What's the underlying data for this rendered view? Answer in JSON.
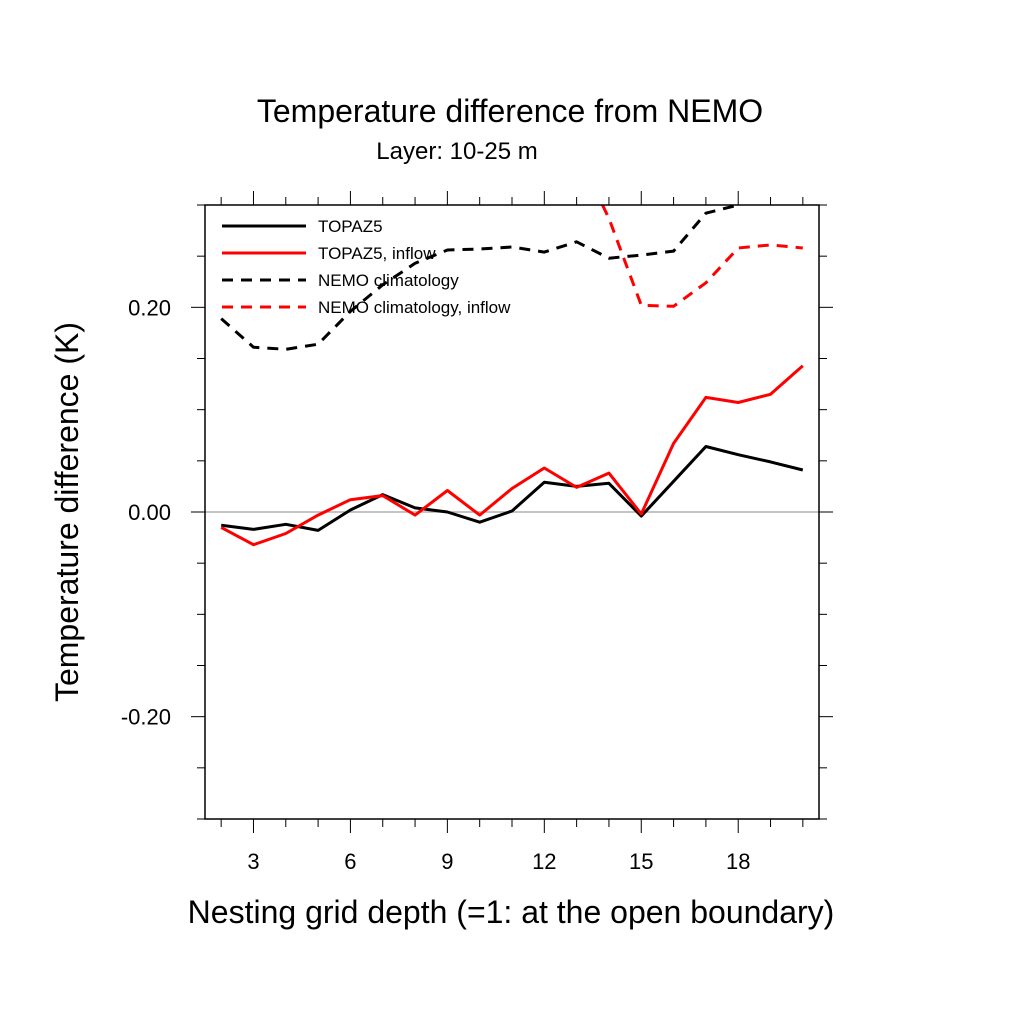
{
  "chart_data": {
    "type": "line",
    "title": "Temperature difference from NEMO",
    "subtitle": "Layer: 10-25 m",
    "xlabel": "Nesting grid depth (=1: at the open boundary)",
    "ylabel": "Temperature difference (K)",
    "xlim": [
      1.5,
      20.5
    ],
    "ylim": [
      -0.3,
      0.3
    ],
    "x_ticks": [
      3,
      6,
      9,
      12,
      15,
      18
    ],
    "x_tick_labels": [
      "3",
      "6",
      "9",
      "12",
      "15",
      "18"
    ],
    "y_ticks": [
      -0.2,
      0.0,
      0.2
    ],
    "y_tick_labels": [
      "-0.20",
      "0.00",
      "0.20"
    ],
    "zero_line": true,
    "grid": false,
    "legend_position": "top-left",
    "series": [
      {
        "name": "TOPAZ5",
        "color": "#000000",
        "dash": "solid",
        "x": [
          2,
          3,
          4,
          5,
          6,
          7,
          8,
          9,
          10,
          11,
          12,
          13,
          14,
          15,
          16,
          17,
          18,
          19,
          20
        ],
        "values": [
          -0.013,
          -0.017,
          -0.012,
          -0.018,
          0.002,
          0.017,
          0.004,
          0.0,
          -0.01,
          0.001,
          0.029,
          0.025,
          0.028,
          -0.004,
          0.03,
          0.064,
          0.056,
          0.049,
          0.041
        ]
      },
      {
        "name": "TOPAZ5, inflow",
        "color": "#ff0000",
        "dash": "solid",
        "x": [
          2,
          3,
          4,
          5,
          6,
          7,
          8,
          9,
          10,
          11,
          12,
          13,
          14,
          15,
          16,
          17,
          18,
          19,
          20
        ],
        "values": [
          -0.015,
          -0.032,
          -0.021,
          -0.003,
          0.012,
          0.016,
          -0.003,
          0.021,
          -0.003,
          0.023,
          0.043,
          0.024,
          0.038,
          -0.002,
          0.067,
          0.112,
          0.107,
          0.115,
          0.143
        ]
      },
      {
        "name": "NEMO climatology",
        "color": "#000000",
        "dash": "dashed",
        "x": [
          2,
          3,
          4,
          5,
          6,
          7,
          8,
          9,
          10,
          11,
          12,
          13,
          14,
          15,
          16,
          17,
          18
        ],
        "values": [
          0.189,
          0.161,
          0.159,
          0.164,
          0.196,
          0.222,
          0.243,
          0.256,
          0.257,
          0.259,
          0.254,
          0.264,
          0.248,
          0.251,
          0.255,
          0.292,
          0.3
        ]
      },
      {
        "name": "NEMO climatology, inflow",
        "color": "#ff0000",
        "dash": "dashed",
        "x": [
          13.8,
          14,
          15,
          16,
          17,
          18,
          19,
          20
        ],
        "values": [
          0.3,
          0.287,
          0.202,
          0.201,
          0.224,
          0.258,
          0.261,
          0.258
        ]
      }
    ]
  }
}
